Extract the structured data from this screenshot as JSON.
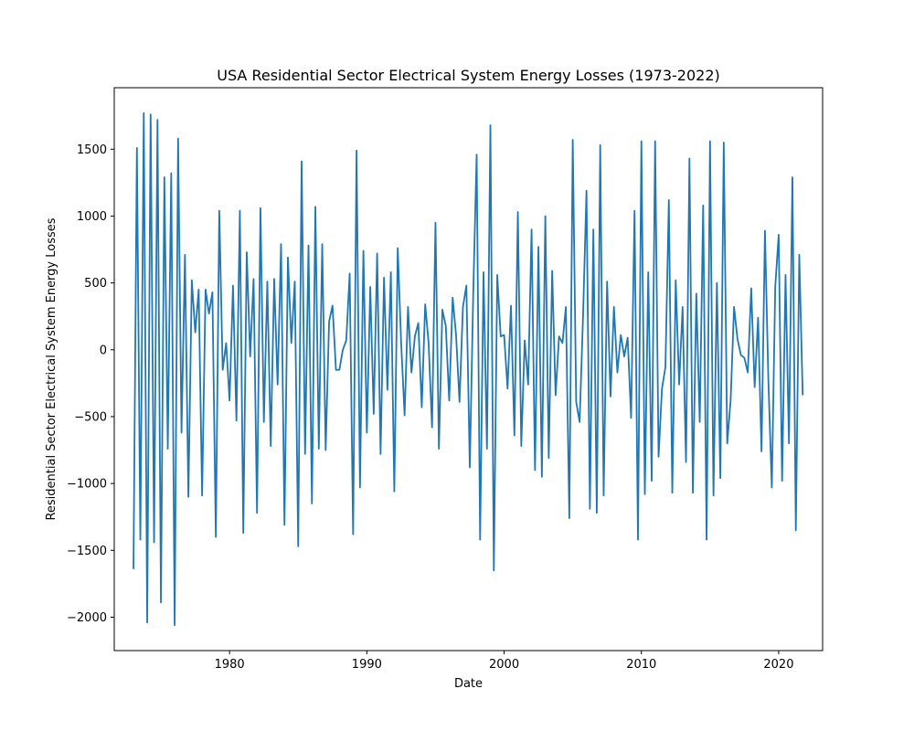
{
  "chart_data": {
    "type": "line",
    "title": "USA Residential Sector Electrical System Energy Losses (1973-2022)",
    "xlabel": "Date",
    "ylabel": "Residential Sector Electrical System Energy Losses",
    "xlim": [
      1971.6,
      2023.2
    ],
    "ylim": [
      -2250,
      1960
    ],
    "x_ticks": [
      1980,
      1990,
      2000,
      2010,
      2020
    ],
    "x_tick_labels": [
      "1980",
      "1990",
      "2000",
      "2010",
      "2020"
    ],
    "y_ticks": [
      -2000,
      -1500,
      -1000,
      -500,
      0,
      500,
      1000,
      1500
    ],
    "y_tick_labels": [
      "−2000",
      "−1500",
      "−1000",
      "−500",
      "0",
      "500",
      "1000",
      "1500"
    ],
    "grid": false,
    "legend": "none",
    "line_color": "#1f77b4",
    "series": [
      {
        "x": [
          1973.0,
          1973.25,
          1973.5,
          1973.75,
          1974.0,
          1974.25,
          1974.5,
          1974.75,
          1975.0,
          1975.25,
          1975.5,
          1975.75,
          1976.0,
          1976.25,
          1976.5,
          1976.75,
          1977.0,
          1977.25,
          1977.5,
          1977.75,
          1978.0,
          1978.25,
          1978.5,
          1978.75,
          1979.0,
          1979.25,
          1979.5,
          1979.75,
          1980.0,
          1980.25,
          1980.5,
          1980.75,
          1981.0,
          1981.25,
          1981.5,
          1981.75,
          1982.0,
          1982.25,
          1982.5,
          1982.75,
          1983.0,
          1983.25,
          1983.5,
          1983.75,
          1984.0,
          1984.25,
          1984.5,
          1984.75,
          1985.0,
          1985.25,
          1985.5,
          1985.75,
          1986.0,
          1986.25,
          1986.5,
          1986.75,
          1987.0,
          1987.25,
          1987.5,
          1987.75,
          1988.0,
          1988.25,
          1988.5,
          1988.75,
          1989.0,
          1989.25,
          1989.5,
          1989.75,
          1990.0,
          1990.25,
          1990.5,
          1990.75,
          1991.0,
          1991.25,
          1991.5,
          1991.75,
          1992.0,
          1992.25,
          1992.5,
          1992.75,
          1993.0,
          1993.25,
          1993.5,
          1993.75,
          1994.0,
          1994.25,
          1994.5,
          1994.75,
          1995.0,
          1995.25,
          1995.5,
          1995.75,
          1996.0,
          1996.25,
          1996.5,
          1996.75,
          1997.0,
          1997.25,
          1997.5,
          1997.75,
          1998.0,
          1998.25,
          1998.5,
          1998.75,
          1999.0,
          1999.25,
          1999.5,
          1999.75,
          2000.0,
          2000.25,
          2000.5,
          2000.75,
          2001.0,
          2001.25,
          2001.5,
          2001.75,
          2002.0,
          2002.25,
          2002.5,
          2002.75,
          2003.0,
          2003.25,
          2003.5,
          2003.75,
          2004.0,
          2004.25,
          2004.5,
          2004.75,
          2005.0,
          2005.25,
          2005.5,
          2005.75,
          2006.0,
          2006.25,
          2006.5,
          2006.75,
          2007.0,
          2007.25,
          2007.5,
          2007.75,
          2008.0,
          2008.25,
          2008.5,
          2008.75,
          2009.0,
          2009.25,
          2009.5,
          2009.75,
          2010.0,
          2010.25,
          2010.5,
          2010.75,
          2011.0,
          2011.25,
          2011.5,
          2011.75,
          2012.0,
          2012.25,
          2012.5,
          2012.75,
          2013.0,
          2013.25,
          2013.5,
          2013.75,
          2014.0,
          2014.25,
          2014.5,
          2014.75,
          2015.0,
          2015.25,
          2015.5,
          2015.75,
          2016.0,
          2016.25,
          2016.5,
          2016.75,
          2017.0,
          2017.25,
          2017.5,
          2017.75,
          2018.0,
          2018.25,
          2018.5,
          2018.75,
          2019.0,
          2019.25,
          2019.5,
          2019.75,
          2020.0,
          2020.25,
          2020.5,
          2020.75,
          2021.0,
          2021.25,
          2021.5,
          2021.75
        ],
        "y": [
          -1640,
          1510,
          -1420,
          1770,
          -2040,
          1760,
          -1440,
          1720,
          -1890,
          1290,
          -740,
          1320,
          -2060,
          1580,
          -620,
          710,
          -1100,
          520,
          130,
          450,
          -1090,
          450,
          270,
          430,
          -1400,
          1040,
          -150,
          50,
          -380,
          480,
          -530,
          1040,
          -1370,
          730,
          -50,
          530,
          -1220,
          1060,
          -540,
          510,
          -720,
          530,
          -260,
          790,
          -1310,
          690,
          50,
          510,
          -1470,
          1410,
          -780,
          780,
          -1150,
          1070,
          -740,
          790,
          -750,
          210,
          330,
          -150,
          -150,
          0,
          70,
          570,
          -1380,
          1490,
          -1030,
          740,
          -620,
          470,
          -480,
          720,
          -780,
          540,
          -300,
          580,
          -1060,
          760,
          50,
          -490,
          320,
          -170,
          100,
          200,
          -430,
          340,
          50,
          -580,
          950,
          -740,
          300,
          180,
          -380,
          390,
          110,
          -390,
          320,
          480,
          -880,
          420,
          1460,
          -1420,
          580,
          -740,
          1680,
          -1650,
          560,
          100,
          110,
          -290,
          330,
          -640,
          1030,
          -720,
          70,
          -260,
          900,
          -900,
          770,
          -950,
          1000,
          -810,
          590,
          -340,
          100,
          50,
          320,
          -1260,
          1570,
          -390,
          -540,
          250,
          1190,
          -1190,
          900,
          -1220,
          1530,
          -1090,
          510,
          -350,
          320,
          -170,
          110,
          -50,
          90,
          -510,
          1040,
          -1420,
          1560,
          -1080,
          580,
          -980,
          1560,
          -800,
          -290,
          -130,
          1120,
          -1070,
          520,
          -260,
          320,
          -840,
          1430,
          -1070,
          420,
          -540,
          1080,
          -1420,
          1560,
          -1090,
          500,
          -960,
          1550,
          -700,
          -380,
          320,
          80,
          -40,
          -60,
          -170,
          460,
          -280,
          240,
          -760,
          890,
          -230,
          -1030,
          470,
          860,
          -980,
          560,
          -700,
          1290,
          -1350,
          710,
          -340
        ]
      }
    ]
  }
}
